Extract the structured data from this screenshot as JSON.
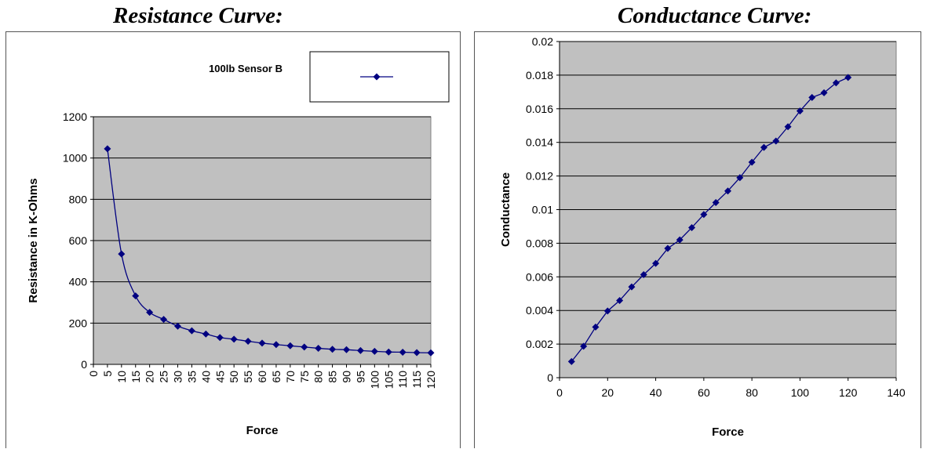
{
  "headings": {
    "left": "Resistance Curve:",
    "right": "Conductance Curve:"
  },
  "colors": {
    "plot_area": "#c0c0c0",
    "series": "#000080",
    "gridline": "#000000"
  },
  "chart_data": [
    {
      "type": "line",
      "title": "",
      "xlabel": "Force",
      "ylabel": "Resistance in K-Ohms",
      "x_tick_labels": [
        "0",
        "5",
        "10",
        "15",
        "20",
        "25",
        "30",
        "35",
        "40",
        "45",
        "50",
        "55",
        "60",
        "65",
        "70",
        "75",
        "80",
        "85",
        "90",
        "95",
        "100",
        "105",
        "110",
        "115",
        "120"
      ],
      "y_tick_labels": [
        "0",
        "200",
        "400",
        "600",
        "800",
        "1000",
        "1200"
      ],
      "xlim": [
        0,
        120
      ],
      "ylim": [
        0,
        1200
      ],
      "grid": "horizontal",
      "legend": "top-right",
      "series": [
        {
          "name": "100lb Sensor B",
          "marker": "diamond",
          "x": [
            5,
            10,
            15,
            20,
            25,
            30,
            35,
            40,
            45,
            50,
            55,
            60,
            65,
            70,
            75,
            80,
            85,
            90,
            95,
            100,
            105,
            110,
            115,
            120
          ],
          "values": [
            1045,
            535,
            332,
            252,
            218,
            185,
            163,
            147,
            130,
            122,
            112,
            103,
            96,
            90,
            84,
            78,
            73,
            71,
            67,
            63,
            60,
            59,
            57,
            56
          ]
        }
      ]
    },
    {
      "type": "line",
      "title": "",
      "xlabel": "Force",
      "ylabel": "Conductance",
      "x_tick_labels": [
        "0",
        "20",
        "40",
        "60",
        "80",
        "100",
        "120",
        "140"
      ],
      "y_tick_labels": [
        "0",
        "0.002",
        "0.004",
        "0.006",
        "0.008",
        "0.01",
        "0.012",
        "0.014",
        "0.016",
        "0.018",
        "0.02"
      ],
      "xlim": [
        0,
        140
      ],
      "ylim": [
        0,
        0.02
      ],
      "grid": "horizontal",
      "legend": "none",
      "series": [
        {
          "marker": "diamond",
          "x": [
            5,
            10,
            15,
            20,
            25,
            30,
            35,
            40,
            45,
            50,
            55,
            60,
            65,
            70,
            75,
            80,
            85,
            90,
            95,
            100,
            105,
            110,
            115,
            120
          ],
          "values": [
            0.00096,
            0.00187,
            0.00301,
            0.00397,
            0.00459,
            0.0054,
            0.00613,
            0.0068,
            0.00769,
            0.0082,
            0.00893,
            0.00971,
            0.01042,
            0.01111,
            0.0119,
            0.01282,
            0.0137,
            0.01408,
            0.01493,
            0.01587,
            0.01667,
            0.01695,
            0.01754,
            0.01786
          ]
        }
      ]
    }
  ]
}
